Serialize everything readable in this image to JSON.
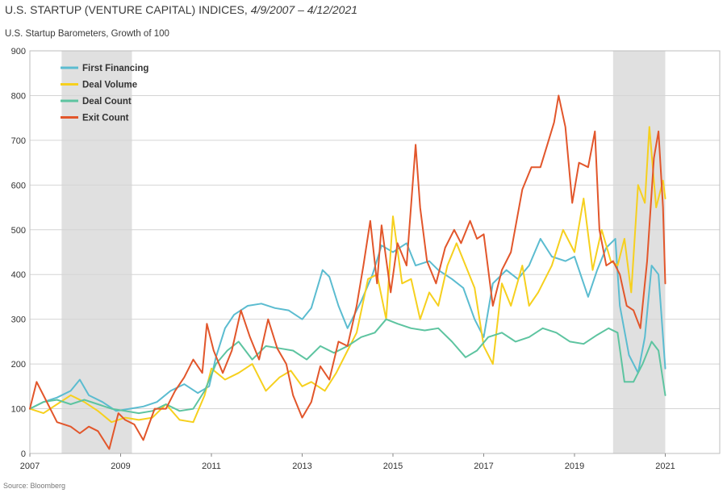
{
  "chart_data": {
    "type": "line",
    "title_main": "U.S. STARTUP (VENTURE CAPITAL) INDICES, ",
    "title_dates": "4/9/2007 – 4/12/2021",
    "subtitle": "U.S. Startup Barometers, Growth of 100",
    "source": "Source: Bloomberg",
    "xlim": [
      2007.0,
      2022.2
    ],
    "ylim": [
      0,
      900
    ],
    "x_ticks": [
      2007,
      2009,
      2011,
      2013,
      2015,
      2017,
      2019,
      2021
    ],
    "x_tick_labels": [
      "2007",
      "2009",
      "2011",
      "2013",
      "2015",
      "2017",
      "2019",
      "2021"
    ],
    "y_ticks": [
      0,
      100,
      200,
      300,
      400,
      500,
      600,
      700,
      800,
      900
    ],
    "y_tick_labels": [
      "0",
      "100",
      "200",
      "300",
      "400",
      "500",
      "600",
      "700",
      "800",
      "900"
    ],
    "recessions": [
      [
        2007.7,
        2009.25
      ],
      [
        2019.85,
        2021.0
      ]
    ],
    "legend_position": "top-left",
    "series": [
      {
        "name": "First Financing",
        "color": "#5bbcd0",
        "x": [
          2007.0,
          2007.3,
          2007.6,
          2007.9,
          2008.1,
          2008.3,
          2008.6,
          2008.9,
          2009.2,
          2009.5,
          2009.8,
          2010.1,
          2010.4,
          2010.7,
          2010.95,
          2011.1,
          2011.3,
          2011.5,
          2011.8,
          2012.1,
          2012.4,
          2012.7,
          2013.0,
          2013.2,
          2013.45,
          2013.6,
          2013.8,
          2014.0,
          2014.3,
          2014.55,
          2014.75,
          2015.0,
          2015.3,
          2015.5,
          2015.8,
          2016.0,
          2016.3,
          2016.55,
          2016.8,
          2017.0,
          2017.2,
          2017.5,
          2017.75,
          2018.0,
          2018.25,
          2018.5,
          2018.8,
          2019.0,
          2019.3,
          2019.5,
          2019.7,
          2019.9,
          2020.0,
          2020.2,
          2020.4,
          2020.55,
          2020.7,
          2020.85,
          2021.0
        ],
        "values": [
          100,
          115,
          125,
          140,
          165,
          130,
          115,
          95,
          100,
          105,
          115,
          140,
          155,
          135,
          150,
          215,
          280,
          310,
          330,
          335,
          325,
          320,
          300,
          325,
          410,
          395,
          330,
          280,
          340,
          400,
          465,
          450,
          470,
          420,
          430,
          410,
          390,
          370,
          300,
          260,
          380,
          410,
          390,
          420,
          480,
          440,
          430,
          440,
          350,
          410,
          460,
          480,
          330,
          220,
          180,
          260,
          420,
          400,
          190
        ]
      },
      {
        "name": "Deal Volume",
        "color": "#f6d01e",
        "x": [
          2007.0,
          2007.3,
          2007.6,
          2007.9,
          2008.2,
          2008.5,
          2008.8,
          2009.1,
          2009.4,
          2009.7,
          2010.0,
          2010.3,
          2010.6,
          2010.85,
          2011.0,
          2011.3,
          2011.6,
          2011.9,
          2012.2,
          2012.5,
          2012.75,
          2013.0,
          2013.2,
          2013.5,
          2013.75,
          2014.0,
          2014.2,
          2014.45,
          2014.65,
          2014.85,
          2015.0,
          2015.2,
          2015.4,
          2015.6,
          2015.8,
          2016.0,
          2016.2,
          2016.4,
          2016.6,
          2016.8,
          2017.0,
          2017.2,
          2017.4,
          2017.6,
          2017.85,
          2018.0,
          2018.2,
          2018.5,
          2018.75,
          2019.0,
          2019.2,
          2019.4,
          2019.6,
          2019.8,
          2019.95,
          2020.1,
          2020.25,
          2020.4,
          2020.55,
          2020.65,
          2020.8,
          2020.95,
          2021.0
        ],
        "values": [
          100,
          90,
          110,
          130,
          115,
          95,
          70,
          80,
          75,
          80,
          110,
          75,
          70,
          130,
          190,
          165,
          180,
          200,
          140,
          170,
          185,
          150,
          160,
          140,
          180,
          230,
          270,
          390,
          400,
          300,
          530,
          380,
          390,
          300,
          360,
          330,
          420,
          470,
          420,
          370,
          240,
          200,
          380,
          330,
          420,
          330,
          360,
          420,
          500,
          450,
          570,
          410,
          500,
          430,
          420,
          480,
          360,
          600,
          560,
          730,
          550,
          610,
          570
        ]
      },
      {
        "name": "Deal Count",
        "color": "#5dc4a0",
        "x": [
          2007.0,
          2007.3,
          2007.6,
          2007.9,
          2008.2,
          2008.5,
          2008.8,
          2009.1,
          2009.4,
          2009.7,
          2010.0,
          2010.3,
          2010.6,
          2010.85,
          2011.1,
          2011.35,
          2011.6,
          2011.9,
          2012.2,
          2012.5,
          2012.8,
          2013.1,
          2013.4,
          2013.7,
          2014.0,
          2014.3,
          2014.6,
          2014.85,
          2015.1,
          2015.4,
          2015.7,
          2016.0,
          2016.3,
          2016.6,
          2016.85,
          2017.1,
          2017.4,
          2017.7,
          2018.0,
          2018.3,
          2018.6,
          2018.9,
          2019.2,
          2019.5,
          2019.75,
          2019.95,
          2020.1,
          2020.3,
          2020.5,
          2020.7,
          2020.85,
          2021.0
        ],
        "values": [
          100,
          115,
          120,
          110,
          120,
          110,
          100,
          95,
          90,
          95,
          110,
          95,
          100,
          140,
          200,
          230,
          250,
          210,
          240,
          235,
          230,
          210,
          240,
          225,
          240,
          260,
          270,
          300,
          290,
          280,
          275,
          280,
          250,
          215,
          230,
          260,
          270,
          250,
          260,
          280,
          270,
          250,
          245,
          265,
          280,
          270,
          160,
          160,
          200,
          250,
          230,
          130
        ]
      },
      {
        "name": "Exit Count",
        "color": "#e2562b",
        "x": [
          2007.0,
          2007.15,
          2007.35,
          2007.6,
          2007.9,
          2008.1,
          2008.3,
          2008.5,
          2008.75,
          2008.95,
          2009.1,
          2009.3,
          2009.5,
          2009.75,
          2010.0,
          2010.2,
          2010.4,
          2010.6,
          2010.8,
          2010.9,
          2011.05,
          2011.25,
          2011.45,
          2011.65,
          2011.85,
          2012.05,
          2012.25,
          2012.45,
          2012.65,
          2012.8,
          2013.0,
          2013.2,
          2013.4,
          2013.6,
          2013.8,
          2014.0,
          2014.2,
          2014.35,
          2014.5,
          2014.65,
          2014.75,
          2014.95,
          2015.1,
          2015.3,
          2015.5,
          2015.6,
          2015.75,
          2015.95,
          2016.15,
          2016.35,
          2016.5,
          2016.7,
          2016.85,
          2017.0,
          2017.2,
          2017.4,
          2017.6,
          2017.85,
          2018.05,
          2018.25,
          2018.4,
          2018.55,
          2018.65,
          2018.8,
          2018.95,
          2019.1,
          2019.3,
          2019.45,
          2019.55,
          2019.7,
          2019.85,
          2020.0,
          2020.15,
          2020.3,
          2020.45,
          2020.6,
          2020.75,
          2020.85,
          2020.95,
          2021.0
        ],
        "values": [
          100,
          160,
          120,
          70,
          60,
          45,
          60,
          50,
          10,
          90,
          75,
          65,
          30,
          100,
          100,
          140,
          170,
          210,
          180,
          290,
          230,
          180,
          230,
          320,
          260,
          210,
          300,
          235,
          200,
          130,
          80,
          115,
          195,
          165,
          250,
          240,
          330,
          420,
          520,
          380,
          510,
          360,
          470,
          420,
          690,
          550,
          430,
          380,
          460,
          500,
          470,
          520,
          480,
          490,
          330,
          410,
          450,
          590,
          640,
          640,
          690,
          740,
          800,
          730,
          560,
          650,
          640,
          720,
          500,
          420,
          430,
          400,
          330,
          320,
          280,
          430,
          660,
          720,
          550,
          380
        ]
      }
    ]
  }
}
